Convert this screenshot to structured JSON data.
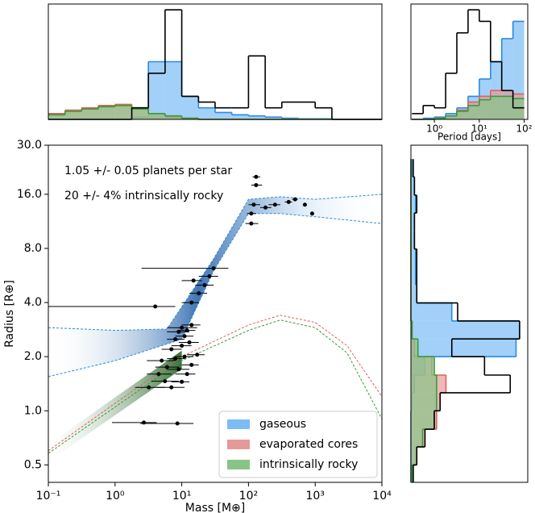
{
  "chart_data": [
    {
      "type": "scatter",
      "xlabel": "Mass [M⊕]",
      "ylabel": "Radius [R⊕]",
      "xscale": "log",
      "yscale": "log",
      "xlim": [
        0.1,
        10000
      ],
      "ylim": [
        0.4,
        30
      ],
      "xticks": [
        {
          "value": 0.1,
          "label": "10⁻¹"
        },
        {
          "value": 1,
          "label": "10⁰"
        },
        {
          "value": 10,
          "label": "10¹"
        },
        {
          "value": 100,
          "label": "10²"
        },
        {
          "value": 1000,
          "label": "10³"
        },
        {
          "value": 10000,
          "label": "10⁴"
        }
      ],
      "yticks": [
        0.5,
        {
          "value": 1,
          "label": "1.0"
        },
        {
          "value": 2,
          "label": "2.0"
        },
        {
          "value": 4,
          "label": "4.0"
        },
        {
          "value": 8,
          "label": "8.0"
        },
        {
          "value": 16,
          "label": "16.0"
        },
        {
          "value": 30,
          "label": "30.0"
        }
      ],
      "annotations": [
        "1.05 +/- 0.05 planets per star",
        "20 +/- 4% intrinsically rocky"
      ],
      "legend_loc": "lower right",
      "legend": [
        {
          "name": "gaseous",
          "color": "#7bbcf5"
        },
        {
          "name": "evaporated cores",
          "color": "#e59a9a"
        },
        {
          "name": "intrinsically rocky",
          "color": "#88c488"
        }
      ],
      "x": [
        2.7,
        8.6,
        3.2,
        7,
        5.6,
        10,
        4.5,
        12,
        6,
        9,
        14,
        5,
        8,
        11,
        17,
        7,
        10,
        13,
        8,
        11,
        9,
        12,
        14,
        10,
        4,
        14,
        18,
        22,
        26,
        30,
        15,
        110,
        110,
        120,
        130,
        130,
        180,
        250,
        400,
        500,
        700,
        900
      ],
      "y": [
        0.86,
        0.85,
        1.35,
        1.35,
        1.46,
        1.45,
        1.6,
        1.6,
        1.75,
        1.7,
        1.8,
        1.9,
        1.95,
        2.0,
        2.05,
        2.2,
        2.3,
        2.4,
        2.5,
        2.6,
        2.75,
        2.8,
        3.0,
        2.9,
        3.8,
        4.0,
        4.5,
        5.0,
        5.6,
        6.2,
        5.3,
        11,
        12.5,
        14,
        18,
        20,
        13.5,
        14,
        14.5,
        15,
        14,
        12.5
      ],
      "xmin": [
        0.9,
        2.4,
        2.0,
        4.2,
        3.5,
        7,
        3,
        8,
        4,
        6,
        10,
        3,
        6,
        8,
        12,
        5,
        7,
        9,
        6,
        8,
        6,
        9,
        10,
        6,
        0.1,
        10,
        13,
        16,
        18,
        2.5,
        10,
        90,
        95,
        100,
        110,
        115,
        150,
        200,
        350,
        450,
        650,
        850
      ],
      "xmax": [
        4.2,
        15,
        5.6,
        11,
        9,
        13,
        7,
        16,
        9,
        13,
        18,
        8,
        11,
        15,
        22,
        10,
        14,
        18,
        11,
        15,
        13,
        16,
        19,
        17,
        8,
        18,
        24,
        30,
        35,
        50,
        20,
        140,
        130,
        150,
        160,
        150,
        220,
        300,
        450,
        550,
        750,
        950
      ],
      "color": "#000000",
      "lines": [
        {
          "color": "#2b8ae0",
          "style": "dashed",
          "x": [
            0.1,
            1,
            6,
            30,
            100,
            300,
            1000,
            10000
          ],
          "y": [
            2.9,
            2.8,
            2.85,
            7,
            15,
            15.5,
            15,
            16
          ]
        },
        {
          "color": "#2b8ae0",
          "style": "dashed",
          "x": [
            0.1,
            1,
            10,
            30,
            100,
            300,
            1000,
            10000
          ],
          "y": [
            1.55,
            1.9,
            2.5,
            6,
            12.5,
            12.5,
            12,
            11
          ]
        },
        {
          "color": "#e06060",
          "style": "dashed",
          "x": [
            0.1,
            1,
            10,
            100,
            300,
            1000,
            3000,
            10000
          ],
          "y": [
            0.6,
            1.1,
            2.0,
            3.0,
            3.4,
            3.1,
            2.3,
            1.2
          ]
        },
        {
          "color": "#3a9a3a",
          "style": "dashed",
          "x": [
            0.1,
            1,
            10,
            100,
            300,
            1000,
            3000,
            10000
          ],
          "y": [
            0.58,
            1.05,
            1.9,
            2.8,
            3.2,
            2.9,
            2.1,
            0.9
          ]
        }
      ]
    },
    {
      "type": "histogram",
      "orientation": "vertical",
      "xscale": "log",
      "xlim": [
        0.1,
        10000
      ],
      "ylim": [
        0,
        1
      ],
      "bins": [
        0.1,
        0.178,
        0.316,
        0.562,
        1,
        1.78,
        3.16,
        5.62,
        10,
        17.8,
        31.6,
        56.2,
        100,
        178,
        316,
        562,
        1000,
        1780,
        3160,
        5620,
        10000
      ],
      "series": [
        {
          "color": "#7bbcf5",
          "edge": "#2b8ae0",
          "values": [
            0,
            0,
            0,
            0,
            0,
            0.02,
            0.5,
            0.5,
            0.2,
            0.1,
            0.06,
            0.04,
            0.03,
            0.02,
            0.01,
            0.005,
            0.005,
            0,
            0,
            0
          ]
        },
        {
          "color": "#e59a9a",
          "edge": "#e06060",
          "values": [
            0.05,
            0.08,
            0.1,
            0.12,
            0.13,
            0.1,
            0.05,
            0.02,
            0.01,
            0,
            0,
            0,
            0,
            0,
            0,
            0,
            0,
            0,
            0,
            0
          ]
        },
        {
          "color": "#88c488",
          "edge": "#3a9a3a",
          "values": [
            0.04,
            0.07,
            0.09,
            0.11,
            0.12,
            0.09,
            0.05,
            0.03,
            0.01,
            0,
            0,
            0,
            0,
            0,
            0,
            0,
            0,
            0,
            0,
            0
          ]
        },
        {
          "color": "none",
          "edge": "#000000",
          "values": [
            0,
            0,
            0,
            0,
            0,
            0.1,
            0.4,
            0.95,
            0.2,
            0.15,
            0.1,
            0.1,
            0.55,
            0.1,
            0.15,
            0.15,
            0.1,
            0,
            0,
            0
          ]
        }
      ]
    },
    {
      "type": "histogram",
      "orientation": "vertical",
      "xscale": "log",
      "xlim": [
        0.3,
        120
      ],
      "ylim": [
        0,
        1
      ],
      "xlabel": "Period [days]",
      "xticks": [
        {
          "value": 1,
          "label": "10⁰"
        },
        {
          "value": 10,
          "label": "10¹"
        },
        {
          "value": 100,
          "label": "10²"
        }
      ],
      "bins": [
        0.316,
        0.562,
        1,
        1.78,
        3.16,
        5.62,
        10,
        17.8,
        31.6,
        56.2,
        100
      ],
      "series": [
        {
          "color": "#7bbcf5",
          "edge": "#2b8ae0",
          "values": [
            0,
            0.01,
            0.02,
            0.05,
            0.1,
            0.2,
            0.35,
            0.5,
            0.7,
            0.85
          ]
        },
        {
          "color": "#e59a9a",
          "edge": "#e06060",
          "values": [
            0,
            0,
            0.01,
            0.03,
            0.08,
            0.15,
            0.2,
            0.25,
            0.25,
            0.22
          ]
        },
        {
          "color": "#88c488",
          "edge": "#3a9a3a",
          "values": [
            0,
            0,
            0.01,
            0.03,
            0.07,
            0.12,
            0.17,
            0.2,
            0.2,
            0.18
          ]
        },
        {
          "color": "none",
          "edge": "#000000",
          "values": [
            0.05,
            0.12,
            0.1,
            0.4,
            0.75,
            0.95,
            0.85,
            0.5,
            0.25,
            0.1
          ]
        }
      ]
    },
    {
      "type": "histogram",
      "orientation": "horizontal",
      "yscale": "log",
      "ylim": [
        0.4,
        30
      ],
      "xlim": [
        0,
        1
      ],
      "bins": [
        0.4,
        0.5,
        0.63,
        0.79,
        1,
        1.26,
        1.58,
        2,
        2.51,
        3.16,
        3.98,
        5.01,
        6.31,
        7.94,
        10,
        12.6,
        15.8,
        20,
        25.1
      ],
      "series": [
        {
          "color": "#7bbcf5",
          "edge": "#2b8ae0",
          "values": [
            0,
            0,
            0,
            0,
            0.01,
            0.03,
            0.12,
            0.9,
            0.93,
            0.35,
            0.05,
            0.04,
            0.04,
            0.03,
            0.03,
            0.04,
            0.03,
            0.01
          ]
        },
        {
          "color": "#e59a9a",
          "edge": "#e06060",
          "values": [
            0.01,
            0.05,
            0.12,
            0.22,
            0.25,
            0.3,
            0.18,
            0.03,
            0.01,
            0,
            0,
            0,
            0,
            0,
            0,
            0,
            0,
            0
          ]
        },
        {
          "color": "#88c488",
          "edge": "#3a9a3a",
          "values": [
            0.01,
            0.05,
            0.1,
            0.2,
            0.22,
            0.22,
            0.2,
            0.06,
            0.01,
            0,
            0,
            0,
            0,
            0,
            0,
            0,
            0,
            0
          ]
        },
        {
          "color": "none",
          "edge": "#000000",
          "values": [
            0.02,
            0.05,
            0.12,
            0.2,
            0.25,
            0.85,
            0.63,
            0.35,
            0.93,
            0.4,
            0.05,
            0.05,
            0.05,
            0.03,
            0.03,
            0.05,
            0.03,
            0.02
          ]
        }
      ]
    }
  ]
}
